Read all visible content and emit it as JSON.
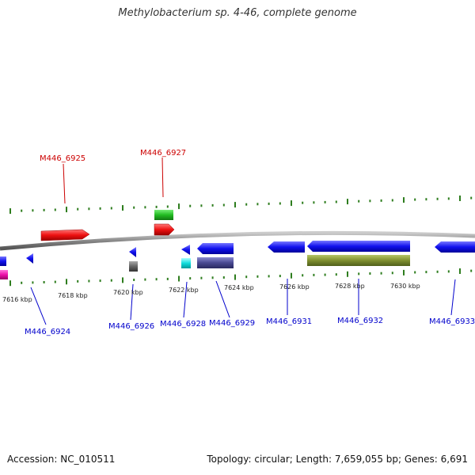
{
  "title": "Methylobacterium sp. 4-46, complete genome",
  "footer": {
    "accession": "Accession: NC_010511",
    "summary": "Topology: circular; Length: 7,659,055 bp; Genes: 6,691"
  },
  "scale_labels": [
    "7616 kbp",
    "7618 kbp",
    "7620 kbp",
    "7622 kbp",
    "7624 kbp",
    "7626 kbp",
    "7628 kbp",
    "7630 kbp"
  ],
  "gene_labels": {
    "forward": [
      "M446_6925",
      "M446_6927"
    ],
    "reverse": [
      "M446_6924",
      "M446_6926",
      "M446_6928",
      "M446_6929",
      "M446_6931",
      "M446_6932",
      "M446_6933"
    ]
  },
  "colors": {
    "forward_cds": "#ee1111",
    "reverse_cds": "#1111ee",
    "rna": "#22bb22",
    "tick": "#2e7d1e",
    "backbone": "#888888"
  }
}
